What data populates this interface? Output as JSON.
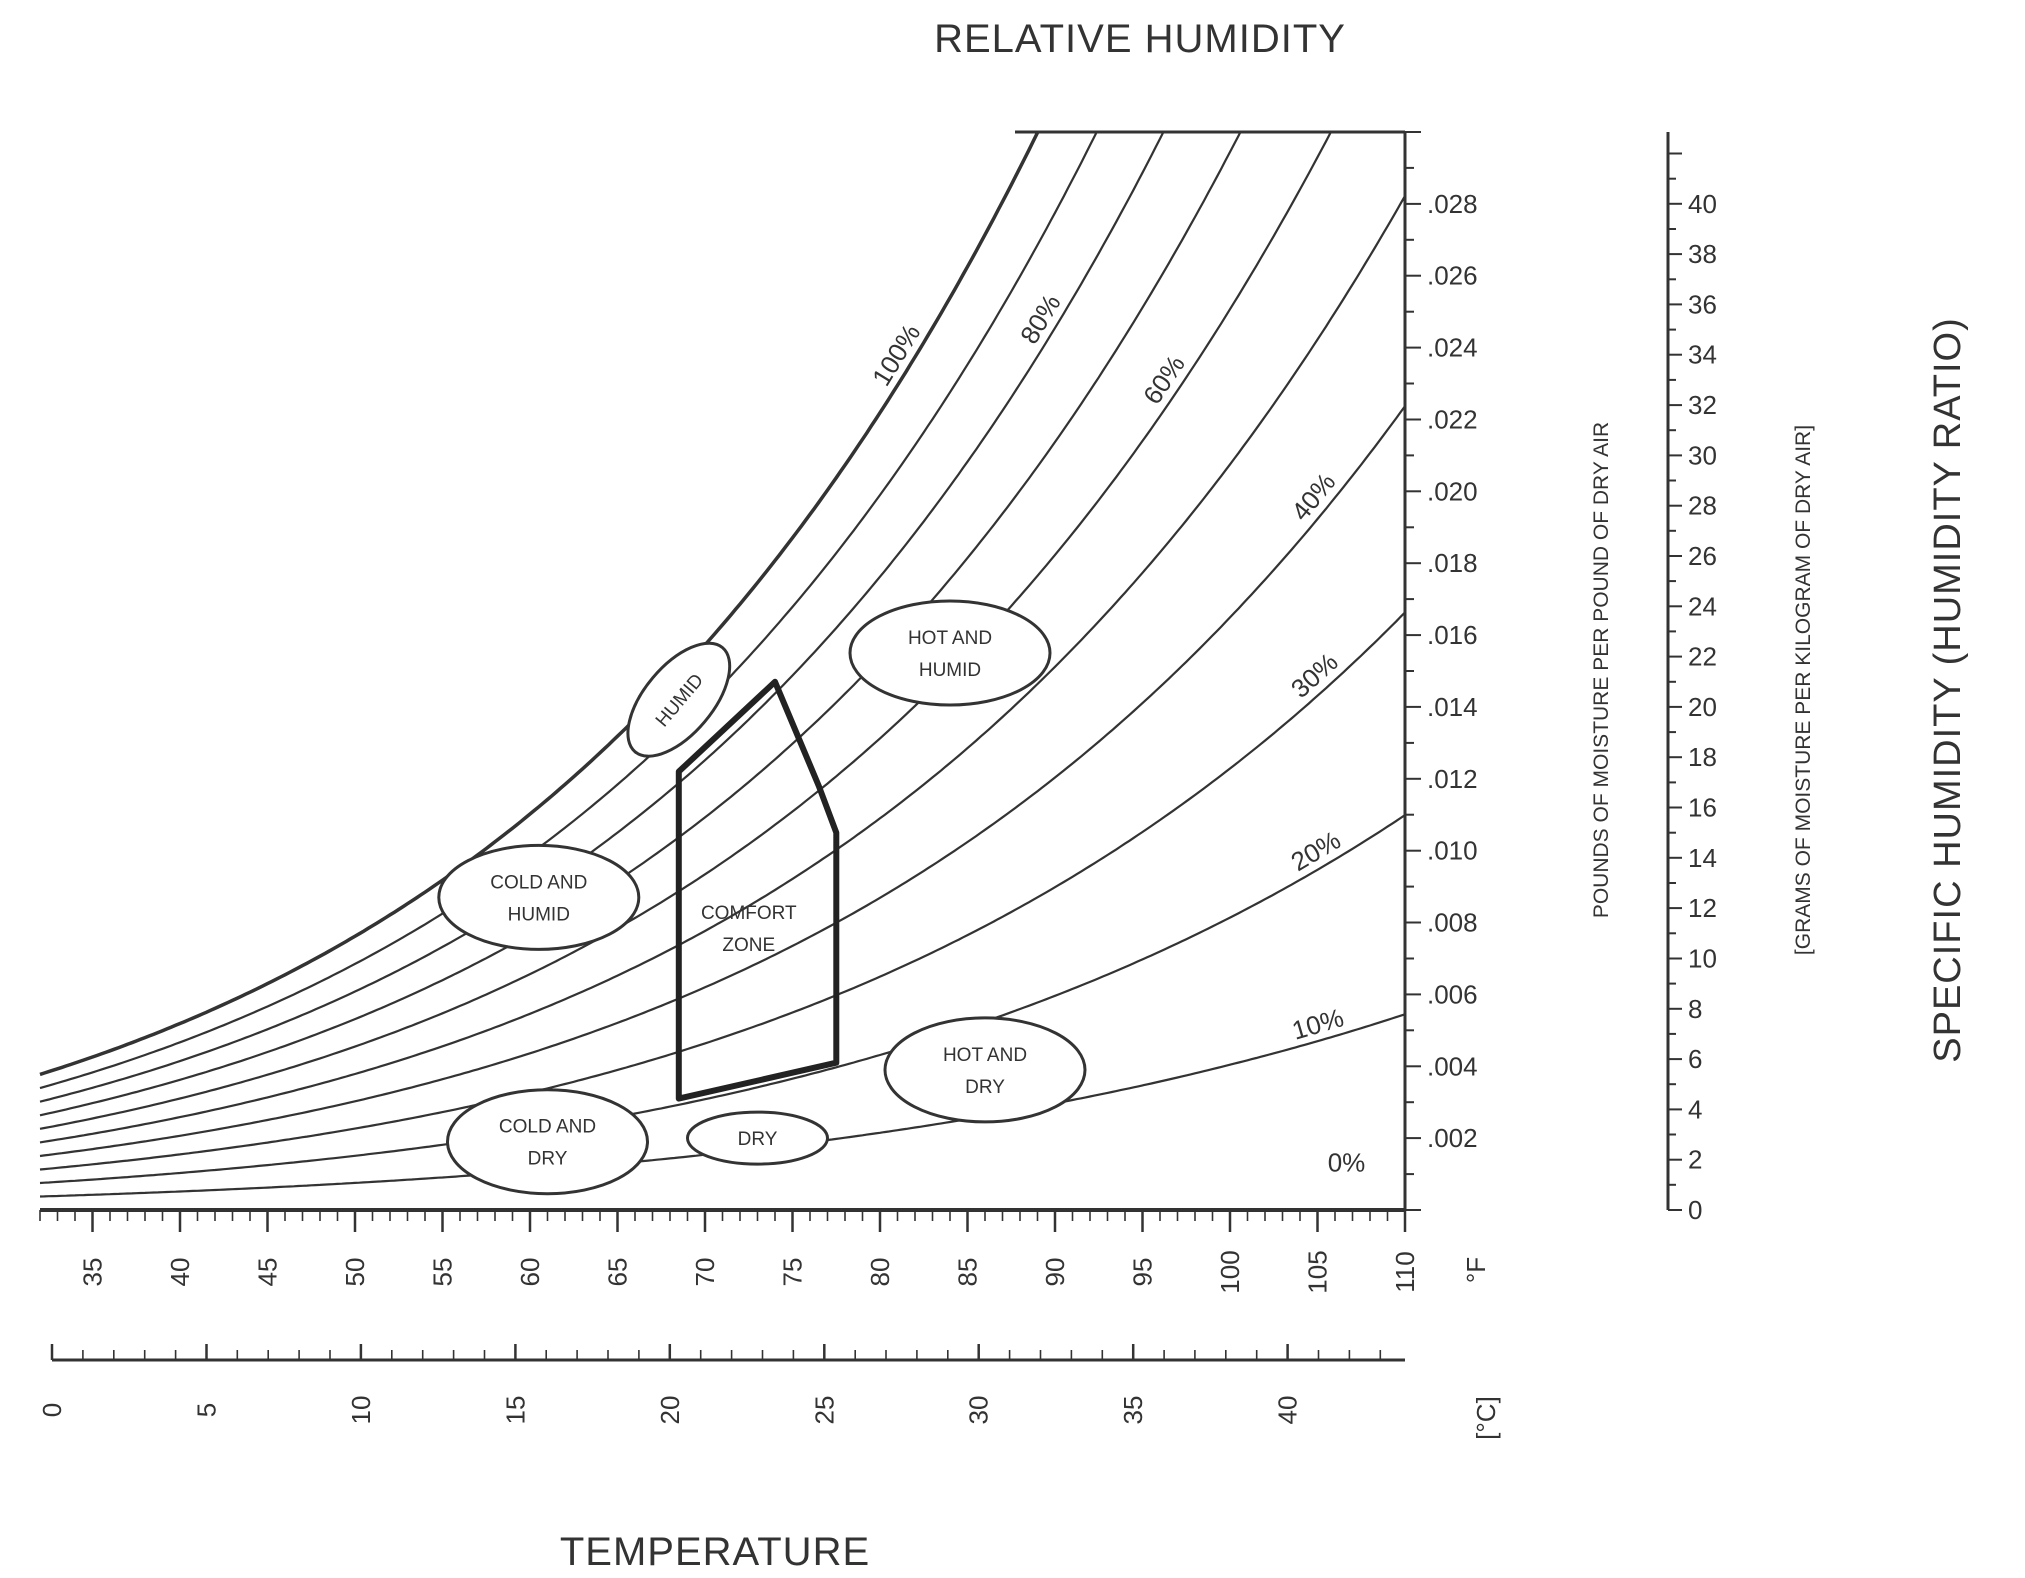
{
  "chart_data": {
    "type": "line",
    "title": "RELATIVE HUMIDITY",
    "xlabel": "TEMPERATURE",
    "ylabel_right": "SPECIFIC HUMIDITY (HUMIDITY RATIO)",
    "y_axis_primary_label": "POUNDS OF MOISTURE PER POUND OF DRY AIR",
    "y_axis_secondary_label": "[GRAMS OF MOISTURE PER KILOGRAM OF DRY AIR]",
    "x_unit_f": "°F",
    "x_unit_c": "[°C]",
    "xlim_f": [
      32,
      110
    ],
    "ylim": [
      0,
      0.03
    ],
    "x_ticks_f": [
      "35",
      "40",
      "45",
      "50",
      "55",
      "60",
      "65",
      "70",
      "75",
      "80",
      "85",
      "90",
      "95",
      "100",
      "105",
      "110"
    ],
    "x_ticks_c": [
      "0",
      "5",
      "10",
      "15",
      "20",
      "25",
      "30",
      "35",
      "40"
    ],
    "y_ticks": [
      ".002",
      ".004",
      ".006",
      ".008",
      ".010",
      ".012",
      ".014",
      ".016",
      ".018",
      ".020",
      ".022",
      ".024",
      ".026",
      ".028"
    ],
    "y_ticks_grams": [
      "0",
      "2",
      "4",
      "6",
      "8",
      "10",
      "12",
      "14",
      "16",
      "18",
      "20",
      "22",
      "24",
      "26",
      "28",
      "30",
      "32",
      "34",
      "36",
      "38",
      "40"
    ],
    "series": [
      {
        "name": "100%",
        "rh": 1.0
      },
      {
        "name": "",
        "rh": 0.9
      },
      {
        "name": "80%",
        "rh": 0.8
      },
      {
        "name": "",
        "rh": 0.7
      },
      {
        "name": "60%",
        "rh": 0.6
      },
      {
        "name": "",
        "rh": 0.5
      },
      {
        "name": "40%",
        "rh": 0.4
      },
      {
        "name": "30%",
        "rh": 0.3
      },
      {
        "name": "20%",
        "rh": 0.2
      },
      {
        "name": "10%",
        "rh": 0.1
      },
      {
        "name": "0%",
        "rh": 0.0
      }
    ],
    "comfort_zone": {
      "label": "COMFORT ZONE",
      "polygon": [
        [
          68.5,
          0.0031
        ],
        [
          68.5,
          0.0122
        ],
        [
          74,
          0.0147
        ],
        [
          76.5,
          0.0118
        ],
        [
          77.5,
          0.0105
        ],
        [
          77.5,
          0.0041
        ]
      ]
    },
    "regions": [
      {
        "label": "HUMID",
        "at": [
          68.5,
          0.0142
        ]
      },
      {
        "label": "HOT AND HUMID",
        "at": [
          84,
          0.0155
        ]
      },
      {
        "label": "COLD AND HUMID",
        "at": [
          60.5,
          0.0087
        ]
      },
      {
        "label": "HOT AND DRY",
        "at": [
          86,
          0.0039
        ]
      },
      {
        "label": "COLD AND DRY",
        "at": [
          61,
          0.0019
        ]
      },
      {
        "label": "DRY",
        "at": [
          73,
          0.002
        ]
      }
    ]
  }
}
